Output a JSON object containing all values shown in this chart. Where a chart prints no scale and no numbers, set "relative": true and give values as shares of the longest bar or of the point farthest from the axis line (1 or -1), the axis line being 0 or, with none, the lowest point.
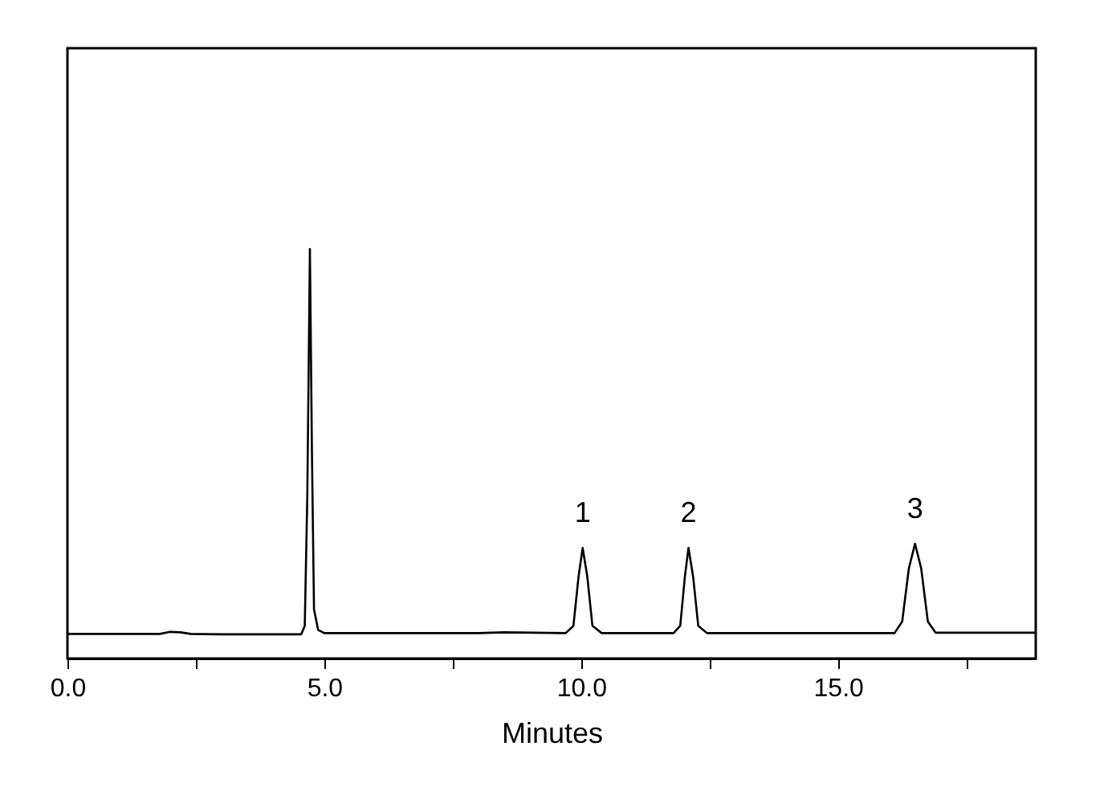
{
  "chart_data": {
    "type": "line",
    "xlabel": "Minutes",
    "relative": true,
    "xlim": [
      0,
      18.85
    ],
    "xticks": [
      {
        "value": 0,
        "label": "0.0"
      },
      {
        "value": 2.5,
        "label": null
      },
      {
        "value": 5,
        "label": "5.0"
      },
      {
        "value": 7.5,
        "label": null
      },
      {
        "value": 10,
        "label": "10.0"
      },
      {
        "value": 12.5,
        "label": null
      },
      {
        "value": 15,
        "label": "15.0"
      },
      {
        "value": 17.5,
        "label": null
      }
    ],
    "grid": false,
    "marker": "none",
    "line_style": "solid",
    "annotations": [
      {
        "text": "1",
        "x": 10.03,
        "y": 0.27
      },
      {
        "text": "2",
        "x": 12.09,
        "y": 0.27
      },
      {
        "text": "3",
        "x": 16.5,
        "y": 0.28
      }
    ],
    "series": [
      {
        "color": "#000000",
        "x": [
          0,
          1.8,
          2.0,
          2.2,
          2.4,
          3.0,
          4.55,
          4.62,
          4.67,
          4.72,
          4.76,
          4.8,
          4.88,
          5.0,
          8.0,
          8.5,
          9.7,
          9.85,
          9.95,
          10.03,
          10.12,
          10.22,
          10.4,
          11.8,
          11.93,
          12.02,
          12.09,
          12.18,
          12.28,
          12.45,
          16.1,
          16.25,
          16.38,
          16.5,
          16.62,
          16.75,
          16.9,
          18.85
        ],
        "values": [
          0.06,
          0.06,
          0.065,
          0.064,
          0.06,
          0.059,
          0.059,
          0.08,
          0.4,
          1.0,
          0.5,
          0.12,
          0.07,
          0.062,
          0.062,
          0.064,
          0.062,
          0.08,
          0.2,
          0.27,
          0.2,
          0.08,
          0.062,
          0.062,
          0.08,
          0.2,
          0.27,
          0.2,
          0.08,
          0.062,
          0.062,
          0.09,
          0.22,
          0.28,
          0.22,
          0.09,
          0.063,
          0.063
        ]
      }
    ]
  }
}
